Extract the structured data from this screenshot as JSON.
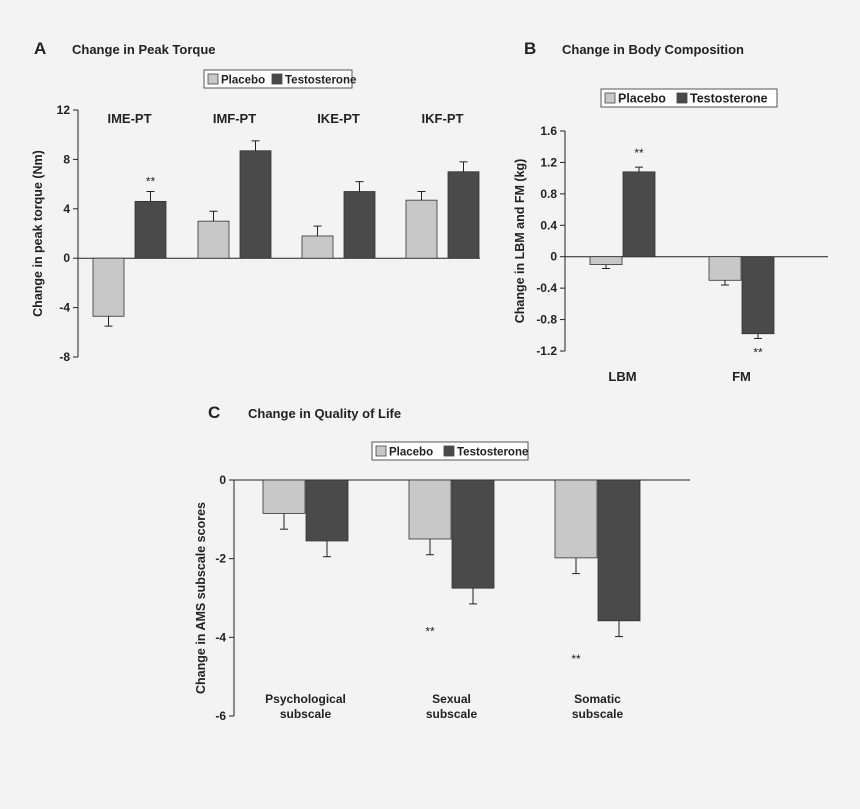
{
  "colors": {
    "placebo": "#c8c8c8",
    "testosterone": "#4a4a4a",
    "axis": "#222222",
    "background": "#f3f3f3"
  },
  "chart_data": [
    {
      "id": "A",
      "panel_letter": "A",
      "type": "bar",
      "title": "Change in Peak Torque",
      "ylabel": "Change in peak torque (Nm)",
      "xlabel": "",
      "ylim": [
        -8,
        12
      ],
      "yticks": [
        -8,
        -4,
        0,
        4,
        8,
        12
      ],
      "ytick_labels": [
        "-8",
        "-4",
        "0",
        "4",
        "8",
        "12"
      ],
      "legend": {
        "placement": "top-center",
        "entries": [
          "Placebo",
          "Testosterone"
        ]
      },
      "categories": [
        "IME-PT",
        "IMF-PT",
        "IKE-PT",
        "IKF-PT"
      ],
      "category_label_position": "top",
      "series": [
        {
          "name": "Placebo",
          "values": [
            -4.7,
            3.0,
            1.8,
            4.7
          ],
          "errors": [
            0.8,
            0.8,
            0.8,
            0.7
          ]
        },
        {
          "name": "Testosterone",
          "values": [
            4.6,
            8.7,
            5.4,
            7.0
          ],
          "errors": [
            0.8,
            0.8,
            0.8,
            0.8
          ]
        }
      ],
      "annotations": [
        {
          "text": "**",
          "category": 0,
          "series": 1,
          "value": 6.2
        }
      ]
    },
    {
      "id": "B",
      "panel_letter": "B",
      "type": "bar",
      "title": "Change in Body Composition",
      "ylabel": "Change in LBM and FM (kg)",
      "xlabel": "",
      "ylim": [
        -1.2,
        1.6
      ],
      "yticks": [
        -1.2,
        -0.8,
        -0.4,
        0,
        0.4,
        0.8,
        1.2,
        1.6
      ],
      "ytick_labels": [
        "-1.2",
        "-0.8",
        "-0.4",
        "0",
        "0.4",
        "0.8",
        "1.2",
        "1.6"
      ],
      "legend": {
        "placement": "top-center",
        "entries": [
          "Placebo",
          "Testosterone"
        ]
      },
      "categories": [
        "LBM",
        "FM"
      ],
      "category_label_position": "bottom",
      "series": [
        {
          "name": "Placebo",
          "values": [
            -0.1,
            -0.3
          ],
          "errors": [
            0.05,
            0.06
          ]
        },
        {
          "name": "Testosterone",
          "values": [
            1.08,
            -0.98
          ],
          "errors": [
            0.06,
            0.06
          ]
        }
      ],
      "annotations": [
        {
          "text": "**",
          "category": 0,
          "series": 1,
          "value": 1.32
        },
        {
          "text": "**",
          "category": 1,
          "series": 1,
          "value": -1.22
        }
      ]
    },
    {
      "id": "C",
      "panel_letter": "C",
      "type": "bar",
      "title": "Change in Quality of Life",
      "ylabel": "Change in AMS subscale scores",
      "xlabel": "",
      "ylim": [
        -6,
        0
      ],
      "yticks": [
        -6,
        -4,
        -2,
        0
      ],
      "ytick_labels": [
        "-6",
        "-4",
        "-2",
        "0"
      ],
      "legend": {
        "placement": "top-center",
        "entries": [
          "Placebo",
          "Testosterone"
        ]
      },
      "categories": [
        [
          "Psychological",
          "subscale"
        ],
        [
          "Sexual",
          "subscale"
        ],
        [
          "Somatic",
          "subscale"
        ]
      ],
      "category_label_position": "bottom",
      "series": [
        {
          "name": "Placebo",
          "values": [
            -0.85,
            -1.5,
            -1.98
          ],
          "errors": [
            0.4,
            0.4,
            0.4
          ]
        },
        {
          "name": "Testosterone",
          "values": [
            -1.55,
            -2.75,
            -3.58
          ],
          "errors": [
            0.4,
            0.4,
            0.4
          ]
        }
      ],
      "annotations": [
        {
          "text": "**",
          "category": 1,
          "series": 0,
          "value": -3.85
        },
        {
          "text": "**",
          "category": 2,
          "series": 0,
          "value": -4.55
        }
      ]
    }
  ]
}
